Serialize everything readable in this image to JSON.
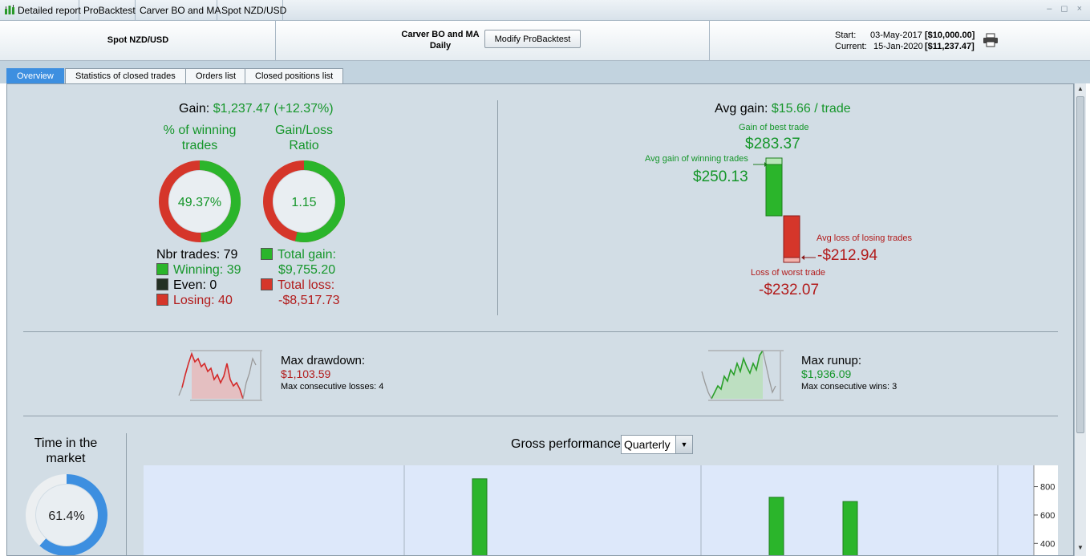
{
  "titlebar": {
    "breadcrumbs": [
      "Detailed report",
      "ProBacktest",
      "Carver BO and MA",
      "Spot NZD/USD"
    ],
    "controls": "– ◻ ×"
  },
  "header": {
    "instrument": "Spot NZD/USD",
    "system_name": "Carver BO and MA",
    "timeframe": "Daily",
    "modify_button": "Modify ProBacktest",
    "start_label": "Start:",
    "start_date": "03-May-2017",
    "start_value": "[$10,000.00]",
    "current_label": "Current:",
    "current_date": "15-Jan-2020",
    "current_value": "[$11,237.47]"
  },
  "tabs": [
    {
      "label": "Overview",
      "active": true
    },
    {
      "label": "Statistics of closed trades",
      "active": false
    },
    {
      "label": "Orders list",
      "active": false
    },
    {
      "label": "Closed positions list",
      "active": false
    }
  ],
  "overview": {
    "gain_label": "Gain:",
    "gain_value": "$1,237.47 (+12.37%)",
    "pct_winning_label_1": "% of winning",
    "pct_winning_label_2": "trades",
    "pct_winning_value": "49.37%",
    "pct_winning_fraction": 0.4937,
    "gl_ratio_label_1": "Gain/Loss",
    "gl_ratio_label_2": "Ratio",
    "gl_ratio_value": "1.15",
    "gl_ratio_fraction": 0.534,
    "nbr_trades": "Nbr trades: 79",
    "winning": "Winning: 39",
    "even": "Even: 0",
    "losing": "Losing: 40",
    "total_gain_label": "Total gain:",
    "total_gain_value": "$9,755.20",
    "total_loss_label": "Total loss:",
    "total_loss_value": "-$8,517.73",
    "avg_gain_label": "Avg gain:",
    "avg_gain_value": "$15.66 / trade",
    "best_trade_label": "Gain of best trade",
    "best_trade_value": "$283.37",
    "avg_win_label": "Avg gain of winning trades",
    "avg_win_value": "$250.13",
    "avg_loss_label": "Avg loss of losing trades",
    "avg_loss_value": "-$212.94",
    "worst_trade_label": "Loss of worst trade",
    "worst_trade_value": "-$232.07",
    "max_drawdown_label": "Max drawdown:",
    "max_drawdown_value": "$1,103.59",
    "max_consec_losses": "Max consecutive losses: 4",
    "max_runup_label": "Max runup:",
    "max_runup_value": "$1,936.09",
    "max_consec_wins": "Max consecutive wins: 3",
    "time_in_market_label_1": "Time in the",
    "time_in_market_label_2": "market",
    "time_in_market_value": "61.4%",
    "time_in_market_fraction": 0.614,
    "gross_perf_label": "Gross performance",
    "period_select": "Quarterly"
  },
  "colors": {
    "gain": "#15962a",
    "loss": "#b21b1b",
    "ring_green": "#2bb52b",
    "ring_red": "#e03a2a",
    "time_blue": "#3d8fe0",
    "chart_bg": "#dde8fa"
  },
  "chart_data": {
    "type": "bar",
    "title": "Gross performance",
    "ylabel": "",
    "y_ticks": [
      400,
      600,
      800
    ],
    "ylim": [
      400,
      900
    ],
    "values": [
      855,
      725,
      695
    ],
    "note": "visible portion of bar chart; only upper part of y axis and three green bars visible"
  }
}
